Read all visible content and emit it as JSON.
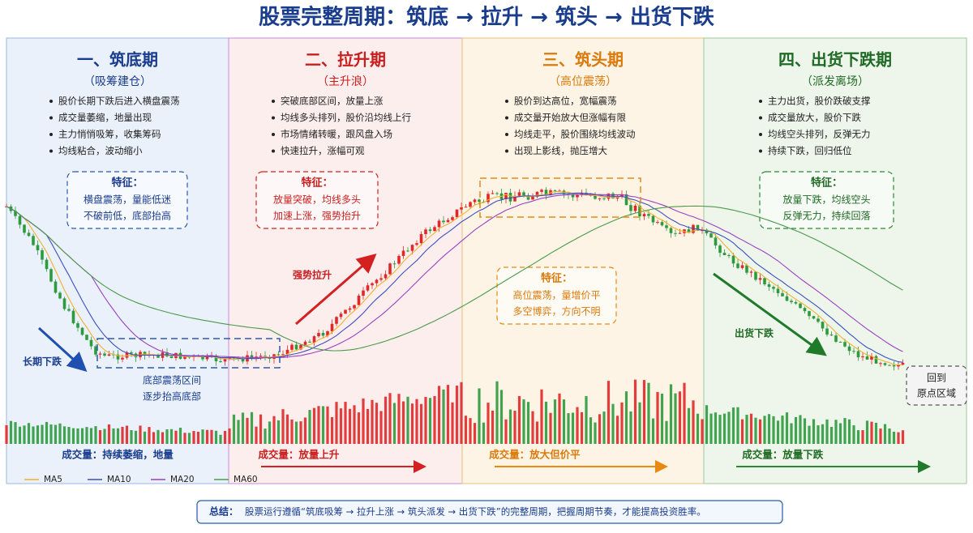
{
  "title": "股票完整周期：筑底 → 拉升 → 筑头 → 出货下跌",
  "phases": [
    {
      "title": "一、筑底期",
      "subtitle": "（吸筹建仓）",
      "points": [
        "股价长期下跌后进入横盘震荡",
        "成交量萎缩，地量出现",
        "主力悄悄吸筹，收集筹码",
        "均线粘合，波动缩小"
      ],
      "feature_title": "特征：",
      "feature_lines": [
        "横盘震荡，量能低迷",
        "不破前低，底部抬高"
      ],
      "volume_label": "成交量：持续萎缩，地量"
    },
    {
      "title": "二、拉升期",
      "subtitle": "（主升浪）",
      "points": [
        "突破底部区间，放量上涨",
        "均线多头排列，股价沿均线上行",
        "市场情绪转暖，跟风盘入场",
        "快速拉升，涨幅可观"
      ],
      "feature_title": "特征：",
      "feature_lines": [
        "放量突破，均线多头",
        "加速上涨，强势抬升"
      ],
      "volume_label": "成交量：放量上升"
    },
    {
      "title": "三、筑头期",
      "subtitle": "（高位震荡）",
      "points": [
        "股价到达高位，宽幅震荡",
        "成交量开始放大但涨幅有限",
        "均线走平，股价围绕均线波动",
        "出现上影线，抛压增大"
      ],
      "feature_title": "特征：",
      "feature_lines": [
        "高位震荡，量增价平",
        "多空博弈，方向不明"
      ],
      "volume_label": "成交量：放大但价平"
    },
    {
      "title": "四、出货下跌期",
      "subtitle": "（派发离场）",
      "points": [
        "主力出货，股价跌破支撑",
        "成交量放大，股价下跌",
        "均线空头排列，反弹无力",
        "持续下跌，回归低位"
      ],
      "feature_title": "特征：",
      "feature_lines": [
        "放量下跌，均线空头",
        "反弹无力，持续回落"
      ],
      "volume_label": "成交量：放量下跌"
    }
  ],
  "annotations": {
    "long_decline": "长期下跌",
    "bottom_range": [
      "底部震荡区间",
      "逐步抬高底部"
    ],
    "strong_rise": "强势拉升",
    "distribution_fall": "出货下跌",
    "return": [
      "回到",
      "原点区域"
    ]
  },
  "legend": [
    "MA5",
    "MA10",
    "MA20",
    "MA60"
  ],
  "summary_label": "总结：",
  "summary": "股票运行遵循“筑底吸筹 → 拉升上涨 → 筑头派发 → 出货下跌”的完整周期，把握周期节奏，才能提高投资胜率。"
}
